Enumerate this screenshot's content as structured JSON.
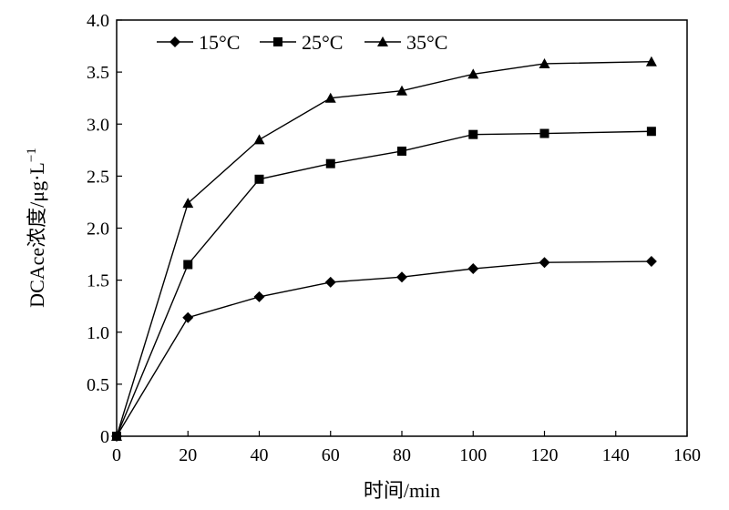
{
  "chart_data": {
    "type": "line",
    "xlabel": "时间/min",
    "ylabel_main": "DCAce浓度/μg·L",
    "ylabel_exp": "−1",
    "x": [
      0,
      20,
      40,
      60,
      80,
      100,
      120,
      150
    ],
    "xlim": [
      0,
      160
    ],
    "ylim": [
      0,
      4.0
    ],
    "xticks": [
      0,
      20,
      40,
      60,
      80,
      100,
      120,
      140,
      160
    ],
    "xtick_labels": [
      "0",
      "20",
      "40",
      "60",
      "80",
      "100",
      "120",
      "140",
      "160"
    ],
    "yticks": [
      0,
      0.5,
      1.0,
      1.5,
      2.0,
      2.5,
      3.0,
      3.5,
      4.0
    ],
    "ytick_labels": [
      "0",
      "0.5",
      "1.0",
      "1.5",
      "2.0",
      "2.5",
      "3.0",
      "3.5",
      "4.0"
    ],
    "grid": false,
    "legend_position": "top-left",
    "series": [
      {
        "name": "15°C",
        "marker": "diamond",
        "values": [
          0,
          1.14,
          1.34,
          1.48,
          1.53,
          1.61,
          1.67,
          1.68
        ]
      },
      {
        "name": "25°C",
        "marker": "square",
        "values": [
          0,
          1.65,
          2.47,
          2.62,
          2.74,
          2.9,
          2.91,
          2.93
        ]
      },
      {
        "name": "35°C",
        "marker": "triangle",
        "values": [
          0,
          2.24,
          2.85,
          3.25,
          3.32,
          3.48,
          3.58,
          3.6
        ]
      }
    ],
    "colors": {
      "line": "#000000",
      "marker": "#000000",
      "axis": "#000000"
    }
  }
}
